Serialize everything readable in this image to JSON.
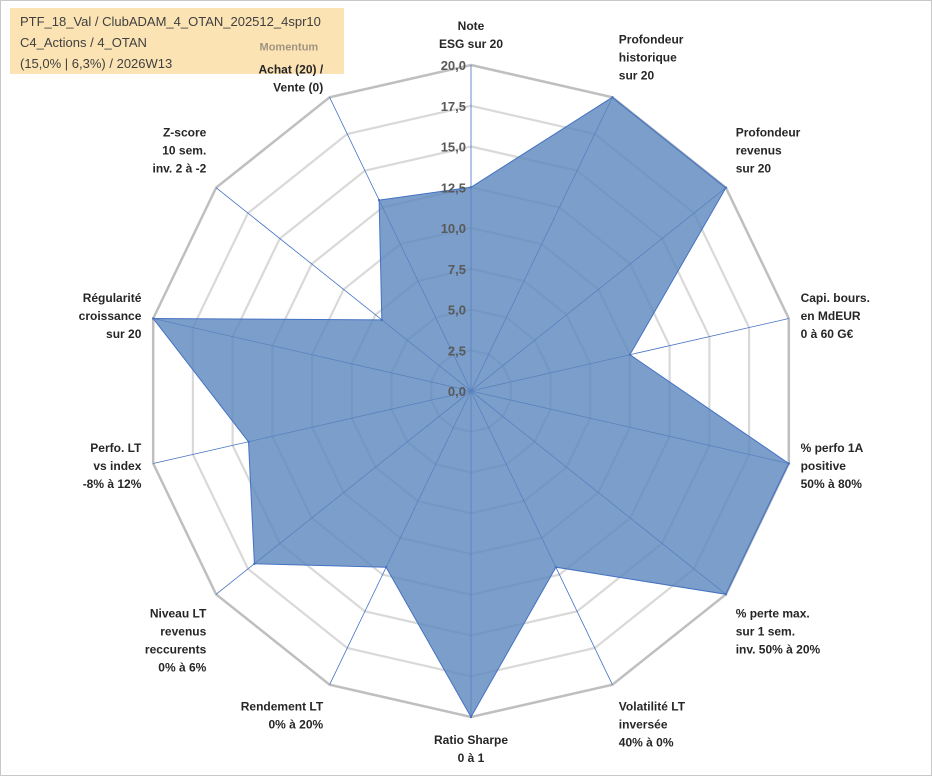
{
  "header": {
    "line1": "PTF_18_Val / ClubADAM_4_OTAN_202512_4spr10",
    "line2": "C4_Actions / 4_OTAN",
    "line3": "(15,0% | 6,3%) / 2026W13"
  },
  "colors": {
    "header_bg": "#fbe3b4",
    "fill": "#5b86bd",
    "stroke": "#4472c4",
    "grid_outer": "#bfbfbf",
    "grid_inner": "#d9d9d9",
    "spoke": "#4472c4"
  },
  "chart_data": {
    "type": "radar",
    "rmin": 0,
    "rmax": 20,
    "ticks": [
      "0,0",
      "2,5",
      "5,0",
      "7,5",
      "10,0",
      "12,5",
      "15,0",
      "17,5",
      "20,0"
    ],
    "tick_values": [
      0,
      2.5,
      5,
      7.5,
      10,
      12.5,
      15,
      17.5,
      20
    ],
    "axes": [
      {
        "lines": [
          "Note",
          "ESG sur 20"
        ],
        "value": 12.5
      },
      {
        "lines": [
          "Profondeur",
          "historique",
          "sur 20"
        ],
        "value": 20
      },
      {
        "lines": [
          "Profondeur",
          "revenus",
          "sur 20"
        ],
        "value": 20
      },
      {
        "lines": [
          "Capi. bours.",
          "en MdEUR",
          "0 à 60 G€"
        ],
        "value": 10
      },
      {
        "lines": [
          "% perfo 1A",
          "positive",
          "50% à 80%"
        ],
        "value": 20
      },
      {
        "lines": [
          "% perte max.",
          "sur 1 sem.",
          "inv. 50% à 20%"
        ],
        "value": 20
      },
      {
        "lines": [
          "Volatilité LT",
          "inversée",
          "40% à 0%"
        ],
        "value": 12
      },
      {
        "lines": [
          "Ratio Sharpe",
          "0 à 1"
        ],
        "value": 20
      },
      {
        "lines": [
          "Rendement LT",
          "0% à 20%"
        ],
        "value": 12
      },
      {
        "lines": [
          "Niveau LT",
          "revenus",
          "reccurents",
          "0% à 6%"
        ],
        "value": 17
      },
      {
        "lines": [
          "Perfo. LT",
          "vs index",
          "-8% à 12%"
        ],
        "value": 14
      },
      {
        "lines": [
          "Régularité",
          "croissance",
          "sur 20"
        ],
        "value": 20
      },
      {
        "lines": [
          "Z-score",
          "10 sem.",
          "inv. 2 à -2"
        ],
        "value": 7
      },
      {
        "lines": [
          "Achat (20) /",
          "Vente (0)"
        ],
        "value": 13,
        "sup": "Momentum"
      }
    ]
  }
}
